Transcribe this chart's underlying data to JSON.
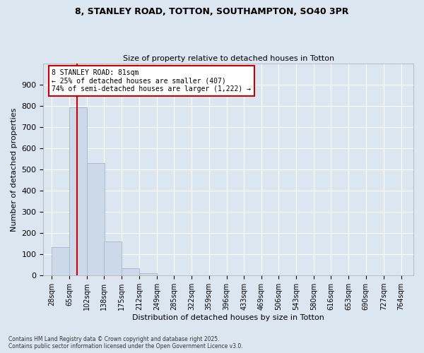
{
  "title_line1": "8, STANLEY ROAD, TOTTON, SOUTHAMPTON, SO40 3PR",
  "title_line2": "Size of property relative to detached houses in Totton",
  "xlabel": "Distribution of detached houses by size in Totton",
  "ylabel": "Number of detached properties",
  "bar_color": "#ccd9e8",
  "bar_edge_color": "#aabbd0",
  "bar_left_edges": [
    28,
    65,
    102,
    138,
    175,
    212,
    249,
    285,
    322,
    359,
    396,
    433,
    469,
    506,
    543,
    580,
    616,
    653,
    690,
    727
  ],
  "bar_heights": [
    135,
    795,
    530,
    160,
    35,
    10,
    0,
    0,
    0,
    0,
    0,
    0,
    0,
    0,
    0,
    0,
    0,
    0,
    0,
    0
  ],
  "bin_width": 37,
  "x_tick_labels": [
    "28sqm",
    "65sqm",
    "102sqm",
    "138sqm",
    "175sqm",
    "212sqm",
    "249sqm",
    "285sqm",
    "322sqm",
    "359sqm",
    "396sqm",
    "433sqm",
    "469sqm",
    "506sqm",
    "543sqm",
    "580sqm",
    "616sqm",
    "653sqm",
    "690sqm",
    "727sqm",
    "764sqm"
  ],
  "x_tick_positions": [
    28,
    65,
    102,
    138,
    175,
    212,
    249,
    285,
    322,
    359,
    396,
    433,
    469,
    506,
    543,
    580,
    616,
    653,
    690,
    727,
    764
  ],
  "ylim": [
    0,
    1000
  ],
  "yticks": [
    0,
    100,
    200,
    300,
    400,
    500,
    600,
    700,
    800,
    900
  ],
  "xlim_min": 10,
  "xlim_max": 790,
  "property_size": 81,
  "property_label": "8 STANLEY ROAD: 81sqm",
  "annotation_line2": "← 25% of detached houses are smaller (407)",
  "annotation_line3": "74% of semi-detached houses are larger (1,222) →",
  "vline_color": "#cc0000",
  "annotation_box_color": "#ffffff",
  "annotation_box_edge": "#cc0000",
  "background_color": "#dce6f0",
  "grid_color": "#ffffff",
  "footer_line1": "Contains HM Land Registry data © Crown copyright and database right 2025.",
  "footer_line2": "Contains public sector information licensed under the Open Government Licence v3.0."
}
